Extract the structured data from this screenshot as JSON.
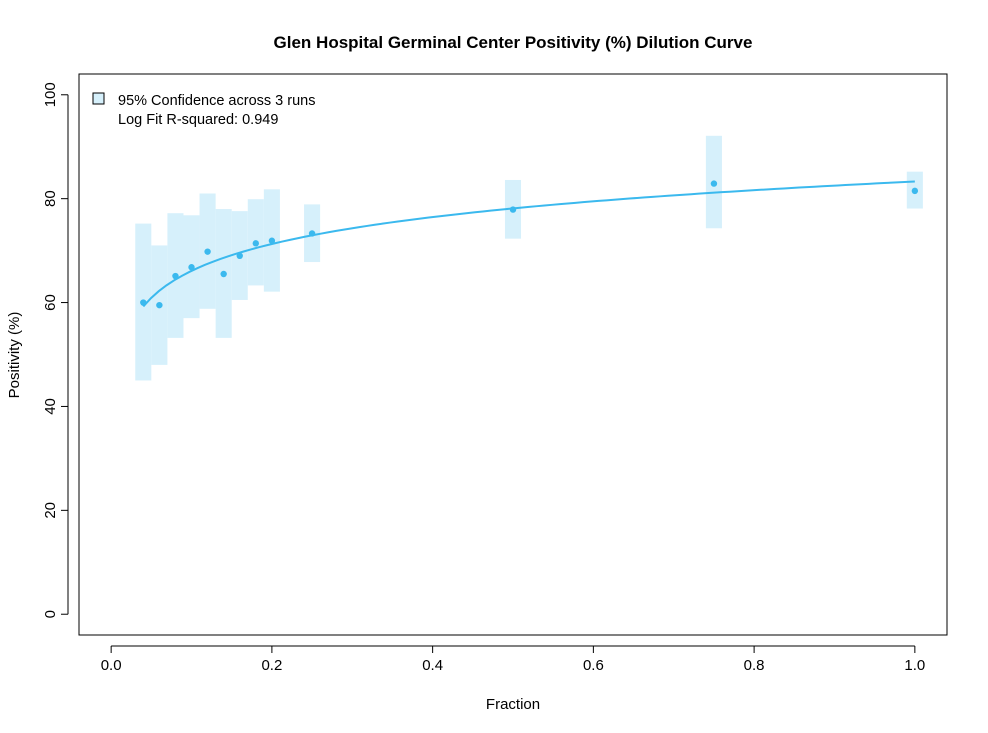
{
  "chart_data": {
    "type": "scatter",
    "title": "Glen Hospital Germinal Center Positivity (%) Dilution Curve",
    "xlabel": "Fraction",
    "ylabel": "Positivity (%)",
    "xlim": [
      -0.04,
      1.04
    ],
    "ylim": [
      -4,
      104
    ],
    "x_ticks": [
      0.0,
      0.2,
      0.4,
      0.6,
      0.8,
      1.0
    ],
    "x_tick_labels": [
      "0.0",
      "0.2",
      "0.4",
      "0.6",
      "0.8",
      "1.0"
    ],
    "y_ticks": [
      0,
      20,
      40,
      60,
      80,
      100
    ],
    "y_tick_labels": [
      "0",
      "20",
      "40",
      "60",
      "80",
      "100"
    ],
    "grid": false,
    "legend": {
      "position": "top-left",
      "entries": [
        "95% Confidence across 3 runs",
        "Log Fit R-squared: 0.949"
      ]
    },
    "colors": {
      "points": "#3bb9ee",
      "fit_line": "#3bb9ee",
      "ci_band": "#d6f0fb",
      "legend_box_fill": "#d6f0fb"
    },
    "points": [
      {
        "x": 0.04,
        "y": 60.0,
        "ci": [
          45.0,
          75.2
        ]
      },
      {
        "x": 0.06,
        "y": 59.5,
        "ci": [
          48.0,
          71.0
        ]
      },
      {
        "x": 0.08,
        "y": 65.1,
        "ci": [
          53.2,
          77.2
        ]
      },
      {
        "x": 0.1,
        "y": 66.8,
        "ci": [
          57.0,
          76.8
        ]
      },
      {
        "x": 0.12,
        "y": 69.8,
        "ci": [
          58.8,
          81.0
        ]
      },
      {
        "x": 0.14,
        "y": 65.5,
        "ci": [
          53.2,
          78.0
        ]
      },
      {
        "x": 0.16,
        "y": 69.0,
        "ci": [
          60.5,
          77.6
        ]
      },
      {
        "x": 0.18,
        "y": 71.4,
        "ci": [
          63.3,
          79.9
        ]
      },
      {
        "x": 0.2,
        "y": 71.9,
        "ci": [
          62.1,
          81.8
        ]
      },
      {
        "x": 0.25,
        "y": 73.3,
        "ci": [
          67.8,
          78.9
        ]
      },
      {
        "x": 0.5,
        "y": 77.9,
        "ci": [
          72.3,
          83.6
        ]
      },
      {
        "x": 0.75,
        "y": 82.9,
        "ci": [
          74.3,
          92.1
        ]
      },
      {
        "x": 1.0,
        "y": 81.5,
        "ci": [
          78.1,
          85.2
        ]
      }
    ],
    "fit": {
      "model": "log",
      "x_range": [
        0.04,
        1.0
      ],
      "intercept": 83.3,
      "slope": 7.47
    }
  }
}
